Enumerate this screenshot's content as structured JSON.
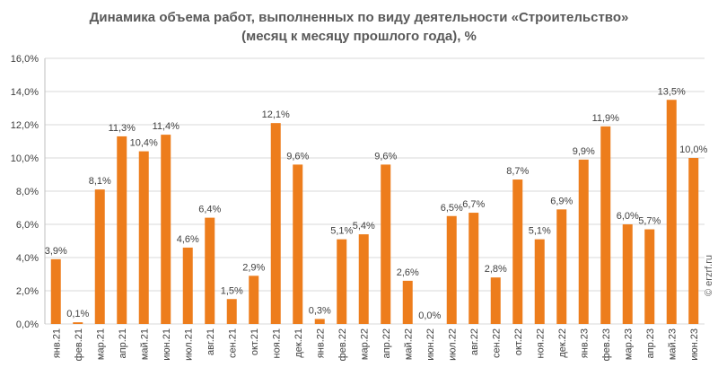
{
  "chart_data": {
    "type": "bar",
    "title": [
      "Динамика объема работ, выполненных по виду деятельности «Строительство»",
      "(месяц к месяцу прошлого года), %"
    ],
    "categories": [
      "янв.21",
      "фев.21",
      "мар.21",
      "апр.21",
      "май.21",
      "июн.21",
      "июл.21",
      "авг.21",
      "сен.21",
      "окт.21",
      "ноя.21",
      "дек.21",
      "янв.22",
      "фев.22",
      "мар.22",
      "апр.22",
      "май.22",
      "июн.22",
      "июл.22",
      "авг.22",
      "сен.22",
      "окт.22",
      "ноя.22",
      "дек.22",
      "янв.23",
      "фев.23",
      "мар.23",
      "апр.23",
      "май.23",
      "июн.23"
    ],
    "values": [
      3.9,
      0.1,
      8.1,
      11.3,
      10.4,
      11.4,
      4.6,
      6.4,
      1.5,
      2.9,
      12.1,
      9.6,
      0.3,
      5.1,
      5.4,
      9.6,
      2.6,
      0.0,
      6.5,
      6.7,
      2.8,
      8.7,
      5.1,
      6.9,
      9.9,
      11.9,
      6.0,
      5.7,
      13.5,
      10.0
    ],
    "value_labels": [
      "3,9%",
      "0,1%",
      "8,1%",
      "11,3%",
      "10,4%",
      "11,4%",
      "4,6%",
      "6,4%",
      "1,5%",
      "2,9%",
      "12,1%",
      "9,6%",
      "0,3%",
      "5,1%",
      "5,4%",
      "9,6%",
      "2,6%",
      "0,0%",
      "6,5%",
      "6,7%",
      "2,8%",
      "8,7%",
      "5,1%",
      "6,9%",
      "9,9%",
      "11,9%",
      "6,0%",
      "5,7%",
      "13,5%",
      "10,0%"
    ],
    "color": "#ed7d1c",
    "ylim": [
      0,
      16
    ],
    "yticks": [
      {
        "value": 0,
        "label": "0,0%"
      },
      {
        "value": 2,
        "label": "2,0%"
      },
      {
        "value": 4,
        "label": "4,0%"
      },
      {
        "value": 6,
        "label": "6,0%"
      },
      {
        "value": 8,
        "label": "8,0%"
      },
      {
        "value": 10,
        "label": "10,0%"
      },
      {
        "value": 12,
        "label": "12,0%"
      },
      {
        "value": 14,
        "label": "14,0%"
      },
      {
        "value": 16,
        "label": "16,0%"
      }
    ],
    "grid": true,
    "watermark": "© erzrf.ru"
  }
}
